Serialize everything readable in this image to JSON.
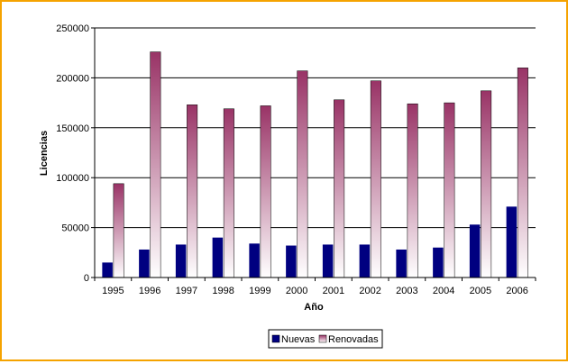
{
  "chart_data": {
    "type": "bar",
    "categories": [
      "1995",
      "1996",
      "1997",
      "1998",
      "1999",
      "2000",
      "2001",
      "2002",
      "2003",
      "2004",
      "2005",
      "2006"
    ],
    "series": [
      {
        "name": "Nuevas",
        "values": [
          15000,
          28000,
          33000,
          40000,
          34000,
          32000,
          33000,
          33000,
          28000,
          30000,
          53000,
          71000
        ]
      },
      {
        "name": "Renovadas",
        "values": [
          94000,
          226000,
          173000,
          169000,
          172000,
          207000,
          178000,
          197000,
          174000,
          175000,
          187000,
          210000
        ]
      }
    ],
    "y_ticks": [
      "0",
      "50000",
      "100000",
      "150000",
      "200000",
      "250000"
    ],
    "ylim": [
      0,
      250000
    ],
    "xlabel": "Año",
    "ylabel": "Licencias",
    "grid": true,
    "legend_position": "bottom"
  },
  "colors": {
    "nuevas": "#000080",
    "renovadas_top": "#993366",
    "renovadas_bottom": "#ffffff",
    "frame": "#f5a300"
  }
}
